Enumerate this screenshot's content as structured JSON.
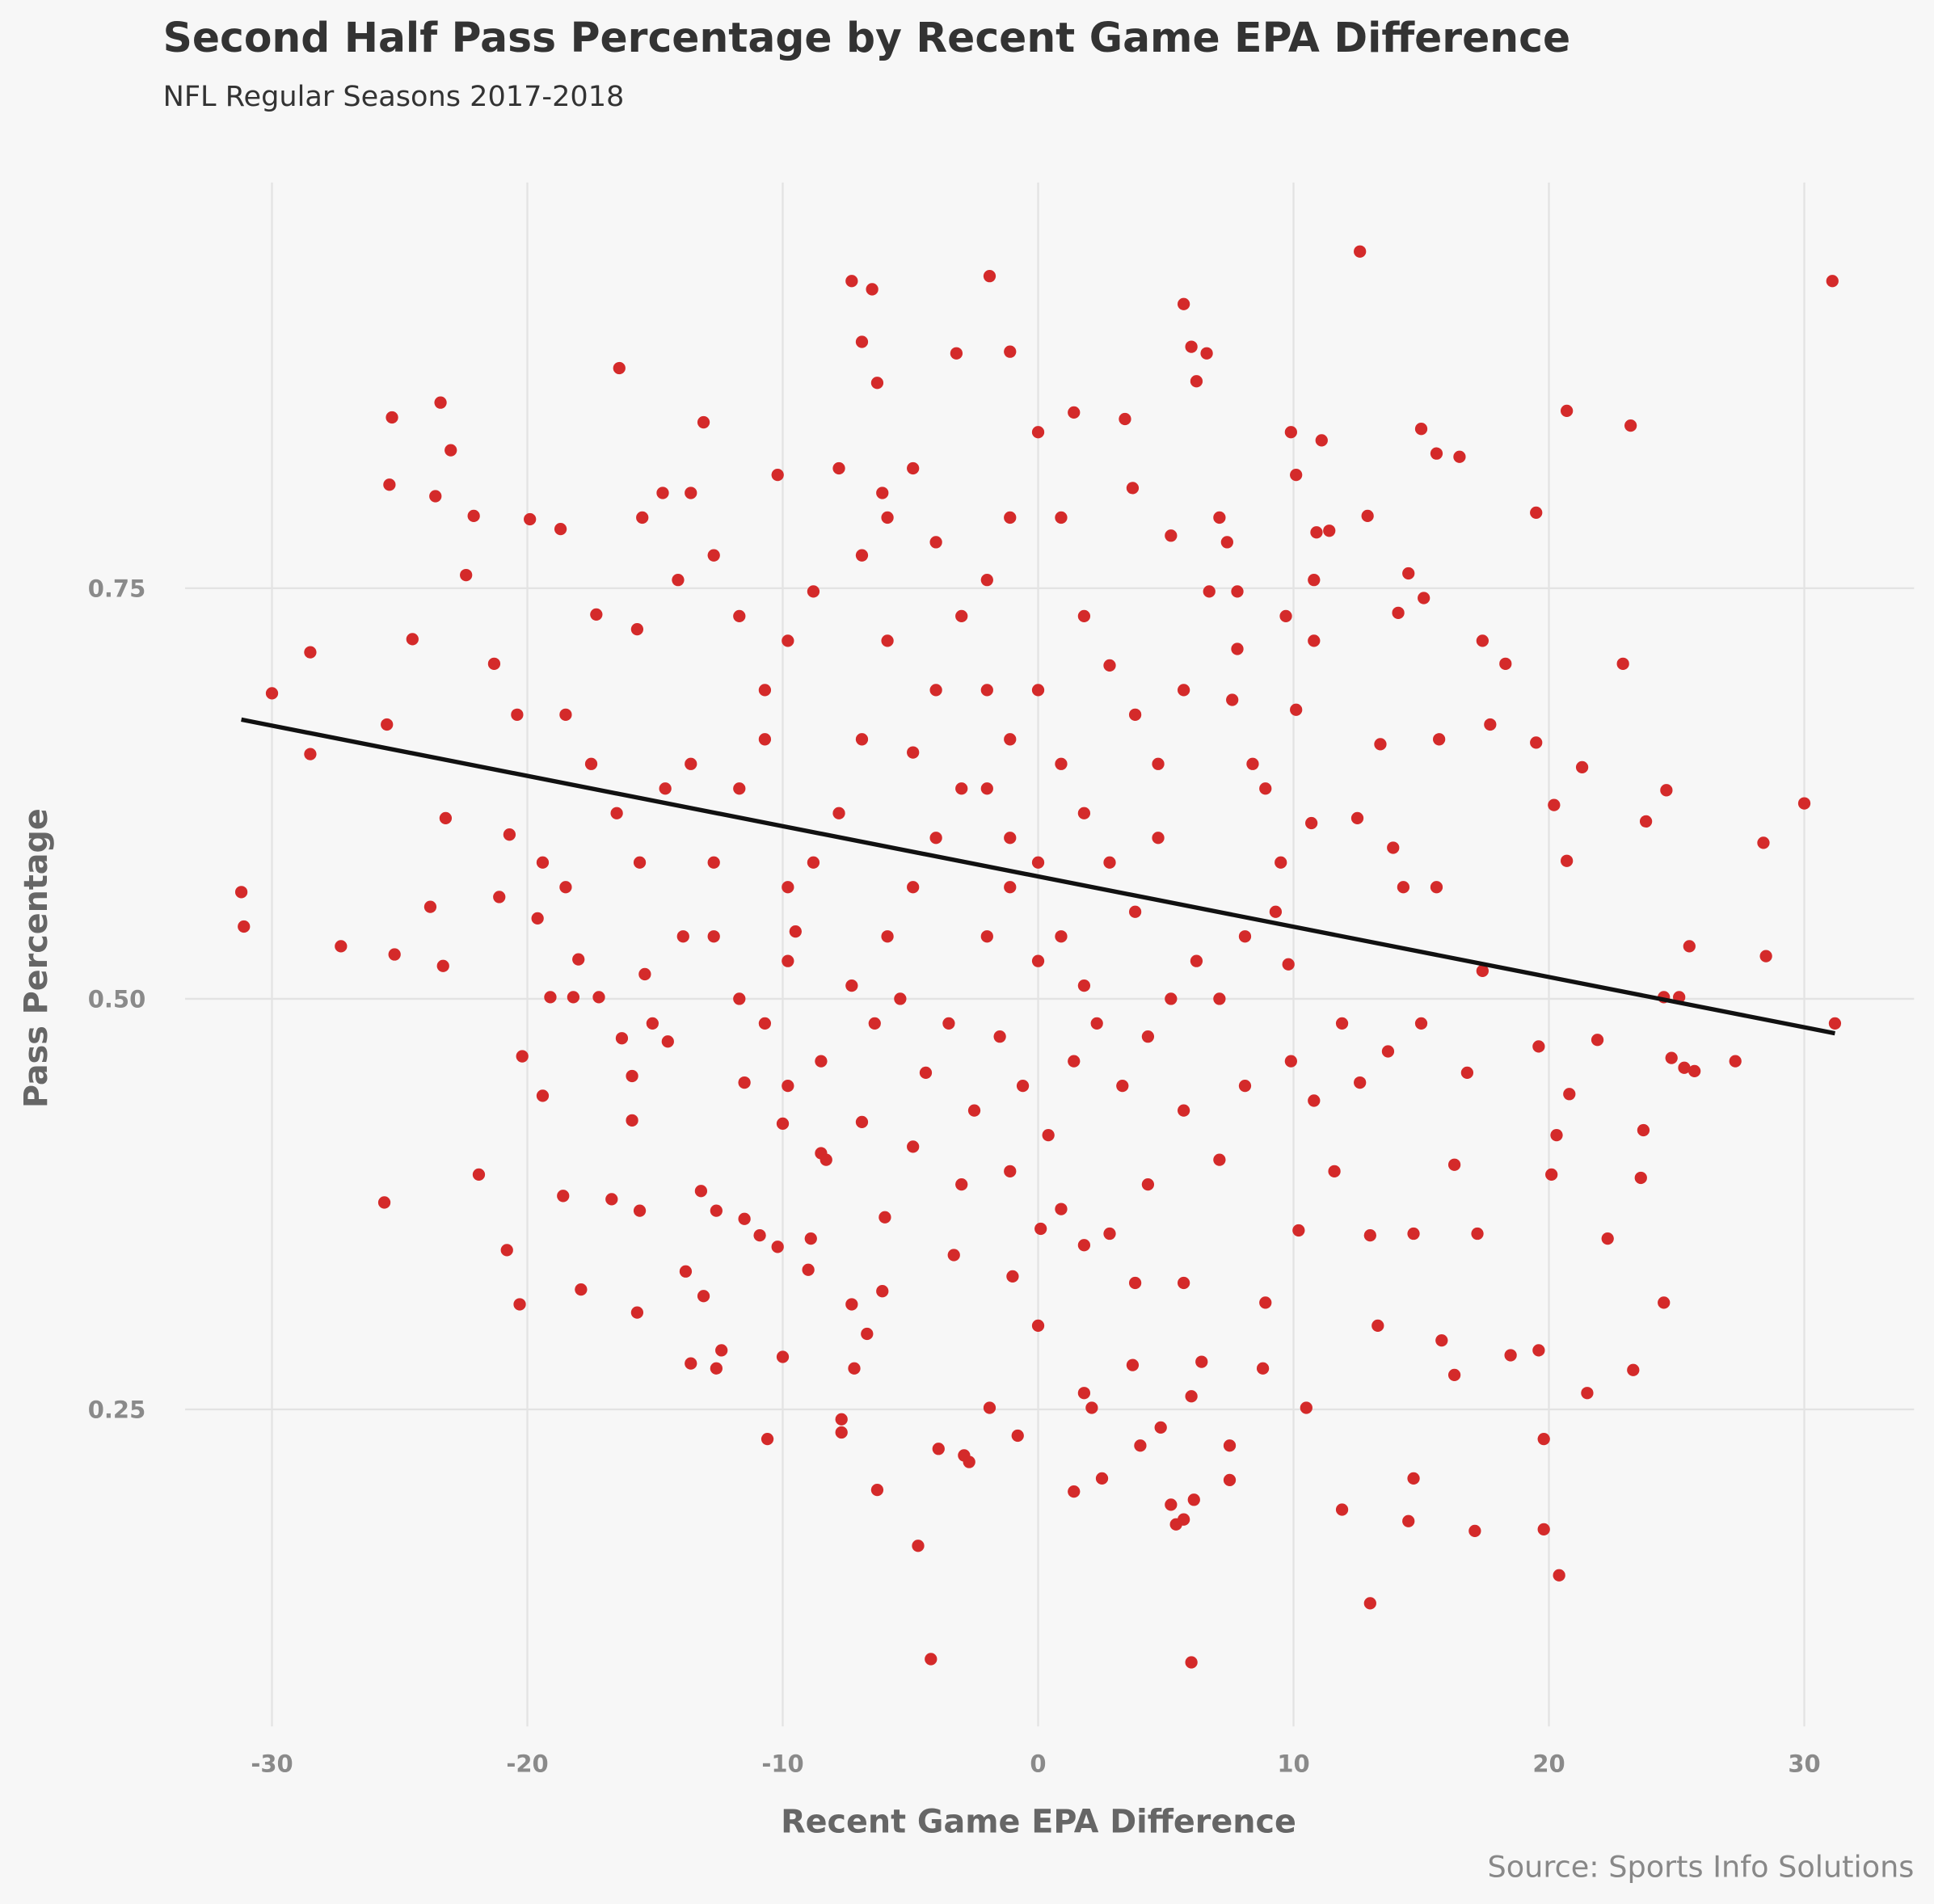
{
  "chart_data": {
    "type": "scatter",
    "title": "Second Half Pass Percentage by Recent Game EPA Difference",
    "subtitle": "NFL Regular Seasons 2017-2018",
    "xlabel": "Recent Game EPA Difference",
    "ylabel": "Pass Percentage",
    "source": "Source: Sports Info Solutions",
    "color": "#d42a2a",
    "trend_color": "#111111",
    "grid": true,
    "xlim": [
      -33.4,
      34.3
    ],
    "ylim": [
      0.057,
      0.997
    ],
    "xticks": [
      -30,
      -20,
      -10,
      0,
      10,
      20,
      30
    ],
    "yticks": [
      0.25,
      {
        "value": 0.5,
        "label": "0.50"
      },
      0.75
    ],
    "trend": {
      "x": [
        -31.2,
        31.2
      ],
      "y": [
        0.67,
        0.479
      ]
    },
    "x": [
      31.1,
      12.6,
      -1.9,
      -7.3,
      -6.5,
      5.7,
      -6.9,
      6.0,
      6.6,
      -3.2,
      -1.1,
      -16.4,
      6.2,
      -6.3,
      -23.4,
      -25.3,
      20.7,
      23.2,
      -13.1,
      9.9,
      15.0,
      -23.0,
      -25.4,
      -23.6,
      -22.1,
      19.5,
      12.9,
      -10.2,
      -6.1,
      11.4,
      -28.5,
      -30.0,
      -31.2,
      -31.1,
      -28.5,
      -27.3,
      -25.6,
      -25.2,
      -25.5,
      -24.5,
      -23.8,
      -23.2,
      -23.3,
      -22.4,
      -21.9,
      -21.3,
      -20.8,
      -20.3,
      -20.2,
      -20.7,
      -19.4,
      -19.9,
      -18.7,
      -18.6,
      -17.9,
      -18.2,
      -17.3,
      -16.7,
      -15.7,
      -15.9,
      -15.9,
      -15.6,
      -15.4,
      -14.5,
      -13.8,
      -13.6,
      -13.1,
      -13.2,
      -12.6,
      -12.4,
      -12.6,
      -11.5,
      -11.5,
      -10.9,
      -10.6,
      -10.2,
      -10.0,
      -10.0,
      -9.8,
      -9.5,
      -9.0,
      -8.9,
      -8.5,
      -7.7,
      -7.7,
      -7.3,
      -7.2,
      -6.7,
      -6.3,
      -6.1,
      -6.0,
      -4.7,
      -4.2,
      -3.9,
      -3.3,
      -2.9,
      -2.7,
      -1.9,
      -1.0,
      -0.8,
      0.0,
      0.1,
      1.4,
      1.8,
      2.1,
      2.5,
      3.7,
      4.0,
      4.8,
      5.2,
      5.4,
      5.7,
      6.1,
      6.0,
      6.0,
      6.4,
      7.5,
      7.5,
      8.9,
      8.8,
      10.5,
      10.2,
      11.9,
      13.0,
      13.3,
      13.0,
      14.7,
      14.5,
      14.7,
      15.8,
      16.3,
      17.1,
      17.2,
      18.5,
      19.6,
      19.8,
      19.8,
      20.4,
      21.5,
      22.3,
      23.3,
      24.5,
      23.6,
      23.7,
      24.8,
      25.5,
      25.1,
      25.3,
      25.7,
      24.5,
      27.3,
      28.5,
      28.4,
      30.0,
      31.2,
      24.6,
      23.8,
      21.3,
      20.7,
      22.9,
      19.5,
      20.2,
      18.3,
      17.4,
      20.1,
      19.6,
      21.9,
      20.3,
      20.8,
      16.3,
      16.8,
      17.4,
      15.6,
      15.0,
      14.3,
      13.9,
      13.7,
      12.6,
      11.9,
      11.6,
      10.8,
      9.9,
      9.8,
      9.3,
      9.5,
      8.9,
      8.4,
      7.6,
      7.8,
      7.8,
      7.4,
      7.1,
      9.7,
      10.8,
      10.8,
      10.9,
      10.1,
      11.1,
      14.1,
      14.5,
      15.6,
      16.5,
      15.1,
      15.7,
      17.7,
      13.4,
      12.5,
      10.7,
      10.1,
      0,
      -1.1,
      -2.0,
      -3.0,
      -4.0,
      -4.9,
      -5.9,
      -6.9,
      -7.8,
      -8.8,
      -9.8,
      -10.7,
      -11.7,
      -12.7,
      -13.6,
      -14.6,
      -15.6,
      -16.5,
      -17.5,
      -18.5,
      -19.4,
      -20.4,
      -21.1,
      -19.6,
      -18.5,
      -18.0,
      -19.1,
      -17.2,
      -16.3,
      -15.1,
      -13.9,
      -12.7,
      -11.7,
      -10.7,
      -9.8,
      -8.5,
      -7.3,
      -6.4,
      -5.4,
      -4.4,
      -3.5,
      -2.5,
      -1.5,
      -0.6,
      0.4,
      1.4,
      2.3,
      3.3,
      4.3,
      5.2,
      6.2,
      7.1,
      8.1,
      5.7,
      4.3,
      2.8,
      0.9,
      -1.1,
      -3.0,
      -4.9,
      -6.9,
      -8.3,
      7.1,
      8.1,
      5.7,
      3.8,
      1.8,
      -1.1,
      -2.0,
      -3.0,
      -4.0,
      -4.9,
      -5.9,
      -6.9,
      -7.8,
      -8.8,
      -9.8,
      -10.7,
      -11.7,
      -12.7,
      -13.6,
      -14.7,
      -15.5,
      -15.7,
      -14.1,
      0,
      0.9,
      1.8,
      2.8,
      3.8,
      4.7,
      5.7,
      6.7,
      5.2,
      3.7,
      3.4,
      1.4,
      1.8,
      2.8,
      3.8,
      4.7,
      0.9,
      0,
      -1.1,
      -2.0,
      -4.0,
      -4.9,
      -5.9,
      -2.0,
      -1.1,
      0.9,
      1.8,
      0
    ],
    "y": [
      0.937,
      0.955,
      0.94,
      0.937,
      0.932,
      0.923,
      0.9,
      0.897,
      0.893,
      0.893,
      0.894,
      0.884,
      0.876,
      0.875,
      0.863,
      0.854,
      0.858,
      0.849,
      0.851,
      0.845,
      0.847,
      0.834,
      0.813,
      0.806,
      0.794,
      0.796,
      0.794,
      0.819,
      0.808,
      0.785,
      0.711,
      0.686,
      0.565,
      0.544,
      0.649,
      0.532,
      0.376,
      0.527,
      0.667,
      0.719,
      0.556,
      0.61,
      0.52,
      0.758,
      0.393,
      0.704,
      0.347,
      0.314,
      0.465,
      0.6,
      0.441,
      0.792,
      0.786,
      0.38,
      0.323,
      0.501,
      0.734,
      0.378,
      0.309,
      0.453,
      0.426,
      0.371,
      0.515,
      0.474,
      0.334,
      0.278,
      0.319,
      0.383,
      0.275,
      0.286,
      0.371,
      0.366,
      0.449,
      0.356,
      0.232,
      0.349,
      0.282,
      0.424,
      0.447,
      0.541,
      0.335,
      0.354,
      0.406,
      0.244,
      0.236,
      0.314,
      0.275,
      0.296,
      0.201,
      0.322,
      0.367,
      0.167,
      0.098,
      0.226,
      0.344,
      0.222,
      0.218,
      0.251,
      0.331,
      0.234,
      0.301,
      0.36,
      0.2,
      0.26,
      0.251,
      0.208,
      0.277,
      0.228,
      0.239,
      0.192,
      0.18,
      0.183,
      0.195,
      0.096,
      0.258,
      0.279,
      0.207,
      0.228,
      0.315,
      0.275,
      0.251,
      0.359,
      0.189,
      0.132,
      0.301,
      0.356,
      0.208,
      0.182,
      0.357,
      0.292,
      0.271,
      0.176,
      0.357,
      0.283,
      0.286,
      0.232,
      0.177,
      0.149,
      0.26,
      0.354,
      0.274,
      0.315,
      0.391,
      0.42,
      0.464,
      0.532,
      0.501,
      0.458,
      0.456,
      0.501,
      0.462,
      0.526,
      0.595,
      0.619,
      0.485,
      0.627,
      0.608,
      0.641,
      0.584,
      0.704,
      0.656,
      0.618,
      0.704,
      0.718,
      0.393,
      0.471,
      0.475,
      0.417,
      0.442,
      0.399,
      0.455,
      0.517,
      0.568,
      0.485,
      0.568,
      0.592,
      0.468,
      0.449,
      0.485,
      0.395,
      0.438,
      0.462,
      0.521,
      0.553,
      0.583,
      0.628,
      0.643,
      0.682,
      0.713,
      0.748,
      0.778,
      0.793,
      0.733,
      0.718,
      0.755,
      0.784,
      0.819,
      0.84,
      0.735,
      0.759,
      0.832,
      0.83,
      0.744,
      0.658,
      0.667,
      0.655,
      0.61,
      0.607,
      0.676,
      0.583,
      0.598,
      0.538,
      0.628,
      0.688,
      0.65,
      0.718,
      0.658,
      0.613,
      0.583,
      0.568,
      0.658,
      0.628,
      0.583,
      0.643,
      0.628,
      0.583,
      0.613,
      0.643,
      0.673,
      0.583,
      0.673,
      0.562,
      0.549,
      0.568,
      0.524,
      0.501,
      0.501,
      0.476,
      0.485,
      0.538,
      0.538,
      0.5,
      0.485,
      0.523,
      0.462,
      0.508,
      0.485,
      0.5,
      0.455,
      0.485,
      0.432,
      0.477,
      0.447,
      0.417,
      0.462,
      0.485,
      0.447,
      0.477,
      0.5,
      0.523,
      0.5,
      0.538,
      0.432,
      0.387,
      0.357,
      0.372,
      0.395,
      0.387,
      0.41,
      0.425,
      0.402,
      0.402,
      0.447,
      0.327,
      0.327,
      0.35,
      0.793,
      0.755,
      0.733,
      0.778,
      0.823,
      0.793,
      0.77,
      0.823,
      0.748,
      0.718,
      0.688,
      0.733,
      0.77,
      0.808,
      0.808,
      0.793,
      0.725,
      0.755,
      0.845,
      0.793,
      0.733,
      0.703,
      0.673,
      0.643,
      0.688,
      0.748,
      0.782,
      0.811,
      0.853,
      0.857,
      0.613,
      0.583,
      0.553,
      0.598,
      0.643,
      0.688,
      0.658,
      0.688,
      0.598,
      0.568,
      0.538,
      0.628,
      0.568,
      0.538,
      0.508,
      0.523
    ]
  }
}
